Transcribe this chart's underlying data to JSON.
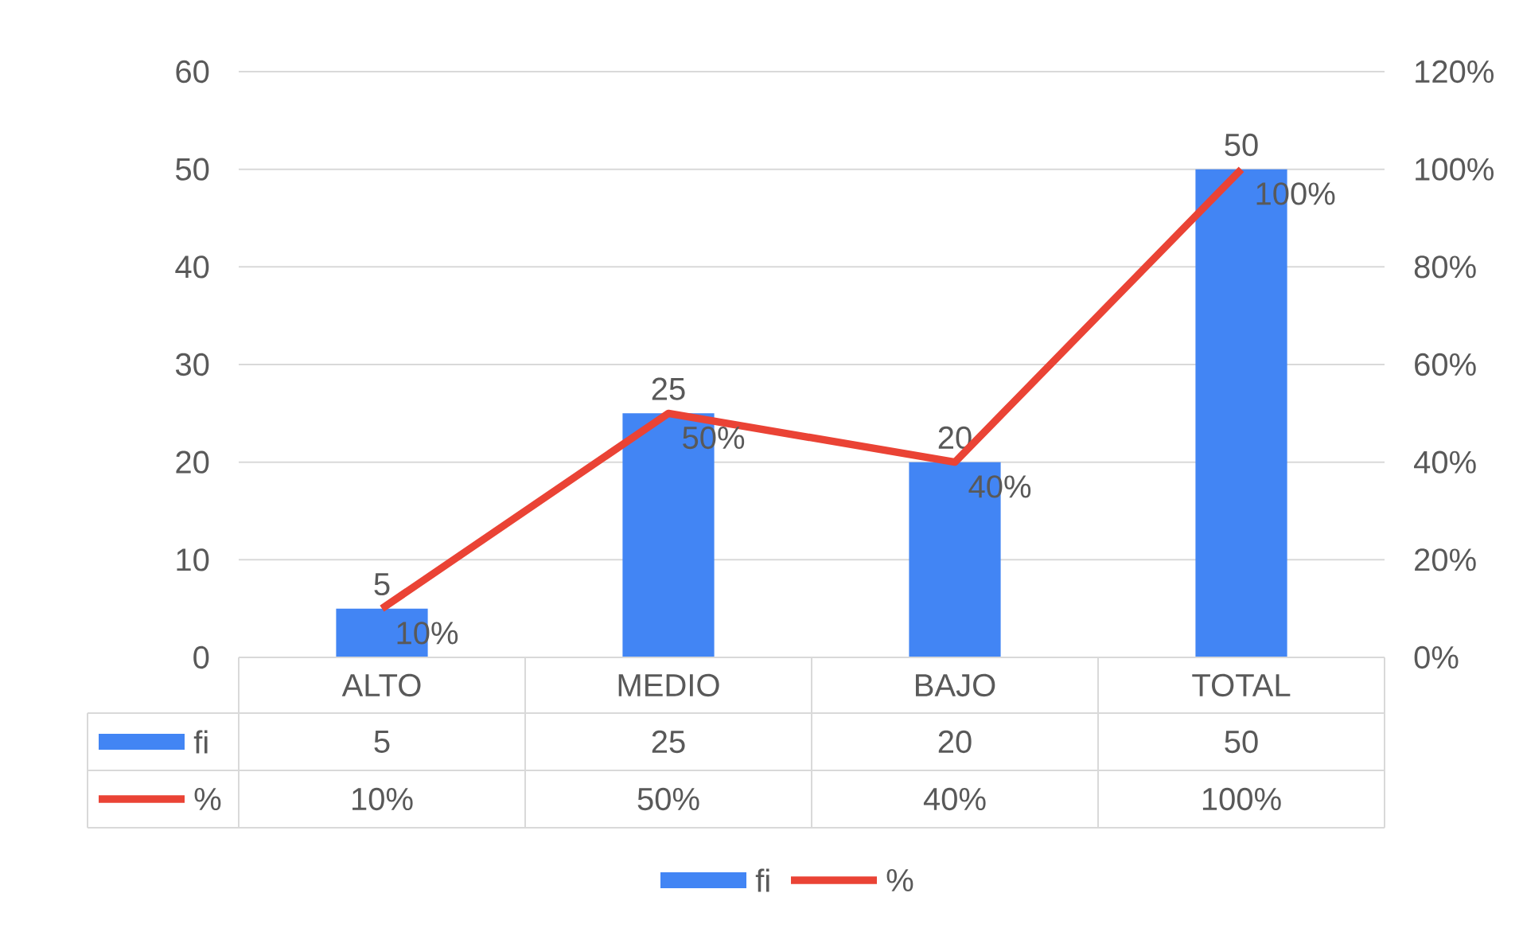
{
  "chart_data": {
    "type": "bar",
    "categories": [
      "ALTO",
      "MEDIO",
      "BAJO",
      "TOTAL"
    ],
    "series": [
      {
        "name": "fi",
        "color": "#4285f4",
        "values": [
          5,
          25,
          20,
          50
        ],
        "value_labels": [
          "5",
          "25",
          "20",
          "50"
        ]
      },
      {
        "name": "%",
        "type": "line",
        "axis": "y2",
        "color": "#ea4335",
        "values": [
          10,
          50,
          40,
          100
        ],
        "value_labels": [
          "10%",
          "50%",
          "40%",
          "100%"
        ]
      }
    ],
    "ylim": [
      0,
      60
    ],
    "yticks": [
      0,
      10,
      20,
      30,
      40,
      50,
      60
    ],
    "y2lim": [
      0,
      120
    ],
    "y2ticks": [
      {
        "value": 0,
        "label": "0%"
      },
      {
        "value": 20,
        "label": "20%"
      },
      {
        "value": 40,
        "label": "40%"
      },
      {
        "value": 60,
        "label": "60%"
      },
      {
        "value": 80,
        "label": "80%"
      },
      {
        "value": 100,
        "label": "100%"
      },
      {
        "value": 120,
        "label": "120%"
      }
    ],
    "grid": "y",
    "legend": "bottom"
  }
}
